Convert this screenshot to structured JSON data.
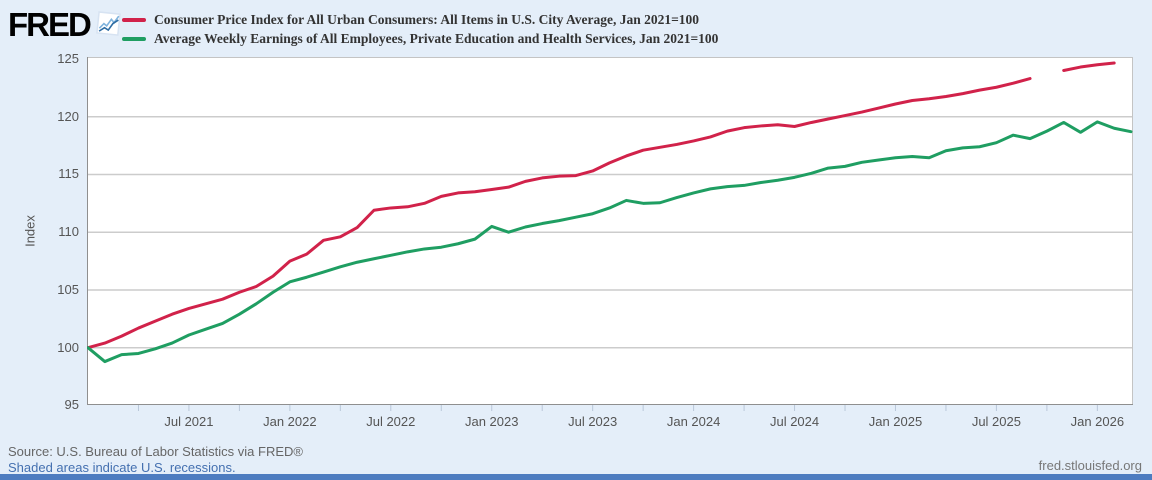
{
  "page": {
    "background": "#e4eef9",
    "bottom_bar_color": "#4d7cc0"
  },
  "header": {
    "logo_text": "FRED",
    "logo_icon": "line-chart-icon"
  },
  "footer": {
    "source": "Source: U.S. Bureau of Labor Statistics via FRED®",
    "recession_note": "Shaded areas indicate U.S. recessions.",
    "site": "fred.stlouisfed.org"
  },
  "chart_data": {
    "type": "line",
    "title": "",
    "ylabel": "Index",
    "ylim": [
      95,
      125
    ],
    "yticks": [
      95,
      100,
      105,
      110,
      115,
      120,
      125
    ],
    "grid": true,
    "legend_position": "top-left",
    "x_tick_labels": [
      "Jul 2021",
      "Jan 2022",
      "Jul 2022",
      "Jan 2023",
      "Jul 2023",
      "Jan 2024",
      "Jul 2024",
      "Jan 2025",
      "Jul 2025",
      "Jan 2026"
    ],
    "minor_tick_every_months": 3,
    "categories": [
      "Jan 2021",
      "Feb 2021",
      "Mar 2021",
      "Apr 2021",
      "May 2021",
      "Jun 2021",
      "Jul 2021",
      "Aug 2021",
      "Sep 2021",
      "Oct 2021",
      "Nov 2021",
      "Dec 2021",
      "Jan 2022",
      "Feb 2022",
      "Mar 2022",
      "Apr 2022",
      "May 2022",
      "Jun 2022",
      "Jul 2022",
      "Aug 2022",
      "Sep 2022",
      "Oct 2022",
      "Nov 2022",
      "Dec 2022",
      "Jan 2023",
      "Feb 2023",
      "Mar 2023",
      "Apr 2023",
      "May 2023",
      "Jun 2023",
      "Jul 2023",
      "Aug 2023",
      "Sep 2023",
      "Oct 2023",
      "Nov 2023",
      "Dec 2023",
      "Jan 2024",
      "Feb 2024",
      "Mar 2024",
      "Apr 2024",
      "May 2024",
      "Jun 2024",
      "Jul 2024",
      "Aug 2024",
      "Sep 2024",
      "Oct 2024",
      "Nov 2024",
      "Dec 2024",
      "Jan 2025",
      "Feb 2025",
      "Mar 2025",
      "Apr 2025",
      "May 2025",
      "Jun 2025",
      "Jul 2025",
      "Aug 2025",
      "Sep 2025",
      "Oct 2025",
      "Nov 2025",
      "Dec 2025",
      "Jan 2026",
      "Feb 2026",
      "Mar 2026"
    ],
    "series": [
      {
        "name": "Consumer Price Index for All Urban Consumers: All Items in U.S. City Average, Jan 2021=100",
        "color": "#d1224a",
        "note": "gap at Oct 2025 (null value)",
        "values": [
          100.0,
          100.4,
          101.0,
          101.7,
          102.3,
          102.9,
          103.4,
          103.8,
          104.2,
          104.8,
          105.3,
          106.2,
          107.5,
          108.1,
          109.3,
          109.6,
          110.4,
          111.9,
          112.1,
          112.2,
          112.5,
          113.1,
          113.4,
          113.5,
          113.7,
          113.9,
          114.4,
          114.7,
          114.85,
          114.9,
          115.3,
          116.0,
          116.6,
          117.1,
          117.35,
          117.6,
          117.9,
          118.25,
          118.75,
          119.05,
          119.2,
          119.3,
          119.15,
          119.5,
          119.8,
          120.1,
          120.4,
          120.75,
          121.1,
          121.4,
          121.55,
          121.75,
          122.0,
          122.3,
          122.55,
          122.9,
          123.3,
          null,
          124.0,
          124.3,
          124.5,
          124.65,
          null
        ]
      },
      {
        "name": "Average Weekly Earnings of All Employees, Private Education and Health Services, Jan 2021=100",
        "color": "#1f9e62",
        "note": "",
        "values": [
          100.0,
          98.8,
          99.4,
          99.5,
          99.9,
          100.4,
          101.1,
          101.6,
          102.1,
          102.9,
          103.8,
          104.8,
          105.7,
          106.1,
          106.55,
          107.0,
          107.4,
          107.7,
          108.0,
          108.3,
          108.55,
          108.7,
          109.0,
          109.4,
          110.5,
          110.0,
          110.45,
          110.75,
          111.0,
          111.3,
          111.6,
          112.1,
          112.75,
          112.5,
          112.55,
          113.0,
          113.4,
          113.75,
          113.95,
          114.05,
          114.3,
          114.5,
          114.75,
          115.1,
          115.55,
          115.7,
          116.05,
          116.25,
          116.45,
          116.55,
          116.45,
          117.05,
          117.3,
          117.4,
          117.75,
          118.4,
          118.1,
          118.75,
          119.5,
          118.65,
          119.55,
          119.0,
          118.7
        ]
      }
    ],
    "plot_colors": {
      "plot_bg": "#ffffff",
      "gridline": "#cccccc",
      "border": "#c4c4c4",
      "axis_line": "#8f8f8f",
      "tick": "#b9c7d9",
      "tick_label": "#555555"
    }
  }
}
